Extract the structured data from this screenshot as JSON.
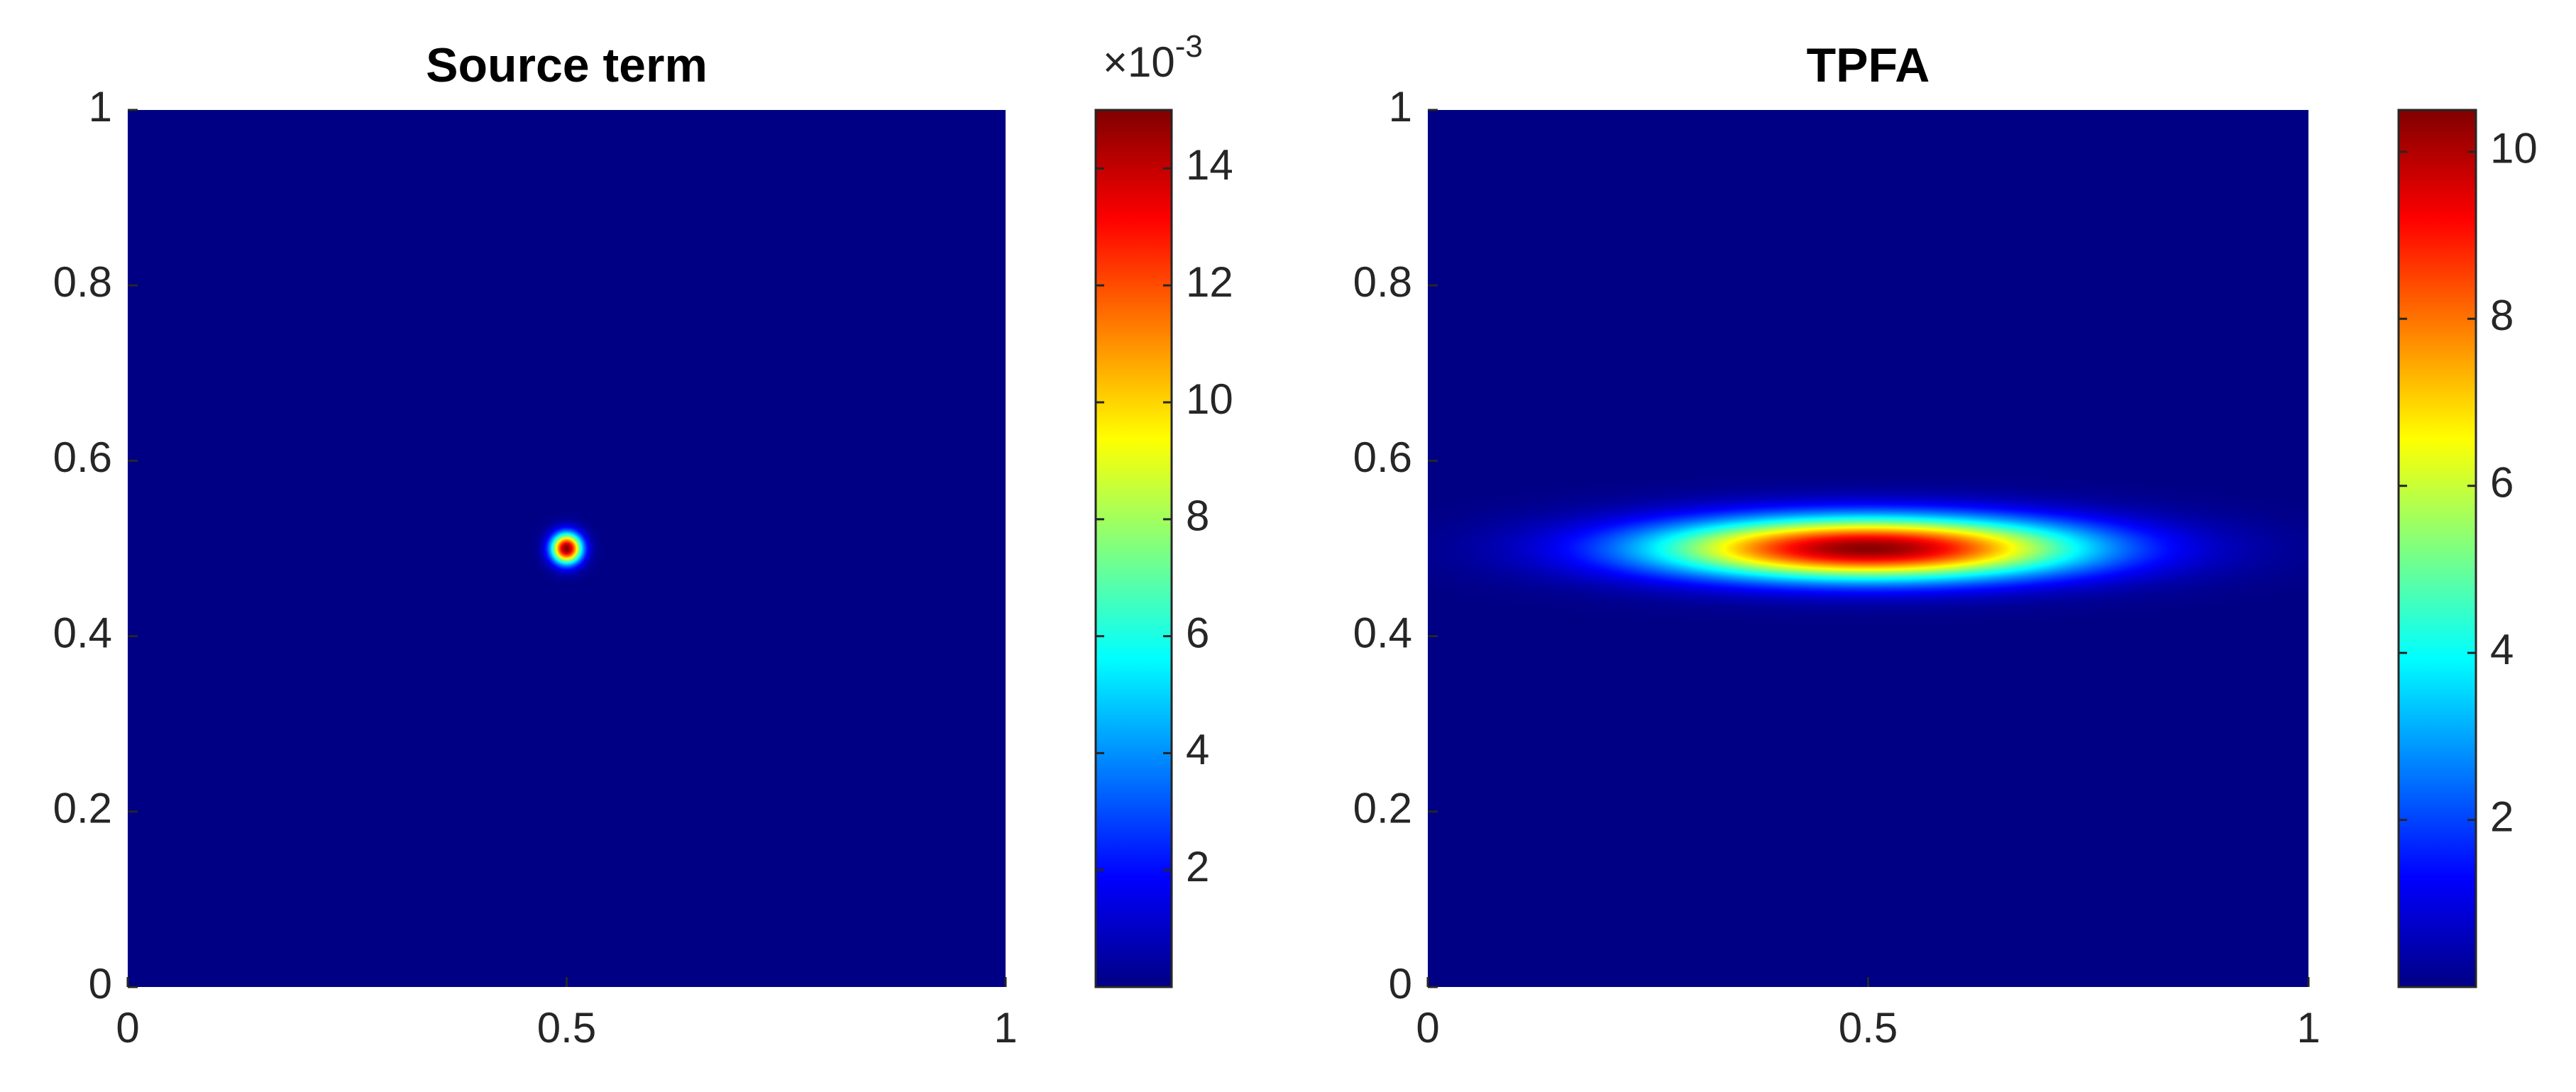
{
  "chart_data": [
    {
      "type": "heatmap",
      "title": "Source term",
      "colormap": "jet",
      "xlim": [
        0,
        1
      ],
      "ylim": [
        0,
        1
      ],
      "xticks": [
        0,
        0.5,
        1
      ],
      "yticks": [
        0,
        0.2,
        0.4,
        0.6,
        0.8,
        1
      ],
      "peak": {
        "x": 0.5,
        "y": 0.5,
        "value": 15,
        "sigma_x": 0.012,
        "sigma_y": 0.012
      },
      "colorbar": {
        "clim": [
          0,
          15
        ],
        "ticks": [
          2,
          4,
          6,
          8,
          10,
          12,
          14
        ],
        "multiplier": {
          "base": "×10",
          "exponent": "-3"
        }
      }
    },
    {
      "type": "heatmap",
      "title": "TPFA",
      "colormap": "jet",
      "xlim": [
        0,
        1
      ],
      "ylim": [
        0,
        1
      ],
      "xticks": [
        0,
        0.5,
        1
      ],
      "yticks": [
        0,
        0.2,
        0.4,
        0.6,
        0.8,
        1
      ],
      "peak": {
        "x": 0.5,
        "y": 0.5,
        "value": 10.4,
        "sigma_x": 0.17,
        "sigma_y": 0.025
      },
      "colorbar": {
        "clim": [
          0,
          10.5
        ],
        "ticks": [
          2,
          4,
          6,
          8,
          10
        ]
      }
    }
  ]
}
